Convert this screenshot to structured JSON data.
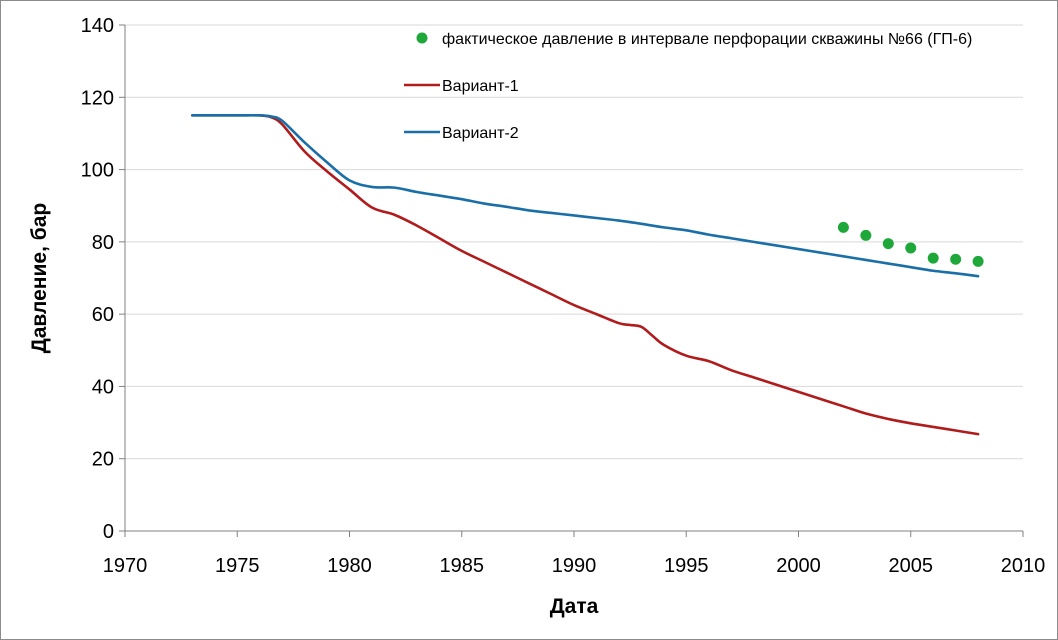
{
  "chart_data": {
    "type": "line",
    "xlabel": "Дата",
    "ylabel": "Давление, бар",
    "xlim": [
      1970,
      2010
    ],
    "ylim": [
      0,
      140
    ],
    "x_ticks": [
      "1970",
      "1975",
      "1980",
      "1985",
      "1990",
      "1995",
      "2000",
      "2005",
      "2010"
    ],
    "y_ticks": [
      "0",
      "20",
      "40",
      "60",
      "80",
      "100",
      "120",
      "140"
    ],
    "grid": "horizontal",
    "legend_position": "top-right",
    "series": [
      {
        "name": "фактическое давление в интервале перфорации скважины №66 (ГП-6)",
        "kind": "scatter",
        "color": "#1fa83a",
        "x": [
          2002,
          2003,
          2004,
          2005,
          2006,
          2007,
          2008
        ],
        "y": [
          84,
          81.8,
          79.5,
          78.3,
          75.5,
          75.2,
          74.6
        ]
      },
      {
        "name": "Вариант-1",
        "kind": "line",
        "color": "#b01c1c",
        "x": [
          1973,
          1974,
          1975,
          1976,
          1976.5,
          1977,
          1978,
          1979,
          1980,
          1981,
          1982,
          1983,
          1984,
          1985,
          1986,
          1987,
          1988,
          1989,
          1990,
          1991,
          1992,
          1992.5,
          1993,
          1993.5,
          1994,
          1995,
          1996,
          1997,
          1998,
          1999,
          2000,
          2001,
          2002,
          2003,
          2004,
          2005,
          2006,
          2007,
          2008
        ],
        "y": [
          115,
          115,
          115,
          115,
          114.5,
          112.5,
          105,
          99.5,
          94.5,
          89.5,
          87.5,
          84.5,
          81,
          77.5,
          74.5,
          71.5,
          68.5,
          65.5,
          62.5,
          60,
          57.5,
          57,
          56.5,
          54,
          51.5,
          48.5,
          47,
          44.5,
          42.5,
          40.5,
          38.5,
          36.5,
          34.5,
          32.5,
          31,
          29.8,
          28.8,
          27.8,
          26.8
        ]
      },
      {
        "name": "Вариант-2",
        "kind": "line",
        "color": "#1a6fa8",
        "x": [
          1973,
          1974,
          1975,
          1976,
          1976.5,
          1977,
          1978,
          1979,
          1980,
          1981,
          1982,
          1983,
          1984,
          1985,
          1986,
          1987,
          1988,
          1989,
          1990,
          1991,
          1992,
          1993,
          1994,
          1995,
          1996,
          1997,
          1998,
          1999,
          2000,
          2001,
          2002,
          2003,
          2004,
          2005,
          2006,
          2007,
          2008
        ],
        "y": [
          115,
          115,
          115,
          115,
          114.7,
          113.5,
          107.5,
          102,
          97,
          95.2,
          95,
          93.8,
          92.8,
          91.8,
          90.6,
          89.7,
          88.7,
          88,
          87.3,
          86.6,
          85.9,
          85,
          84,
          83.2,
          82,
          81,
          80,
          79,
          78,
          77,
          76,
          75,
          74,
          73,
          72,
          71.3,
          70.5
        ]
      }
    ]
  }
}
